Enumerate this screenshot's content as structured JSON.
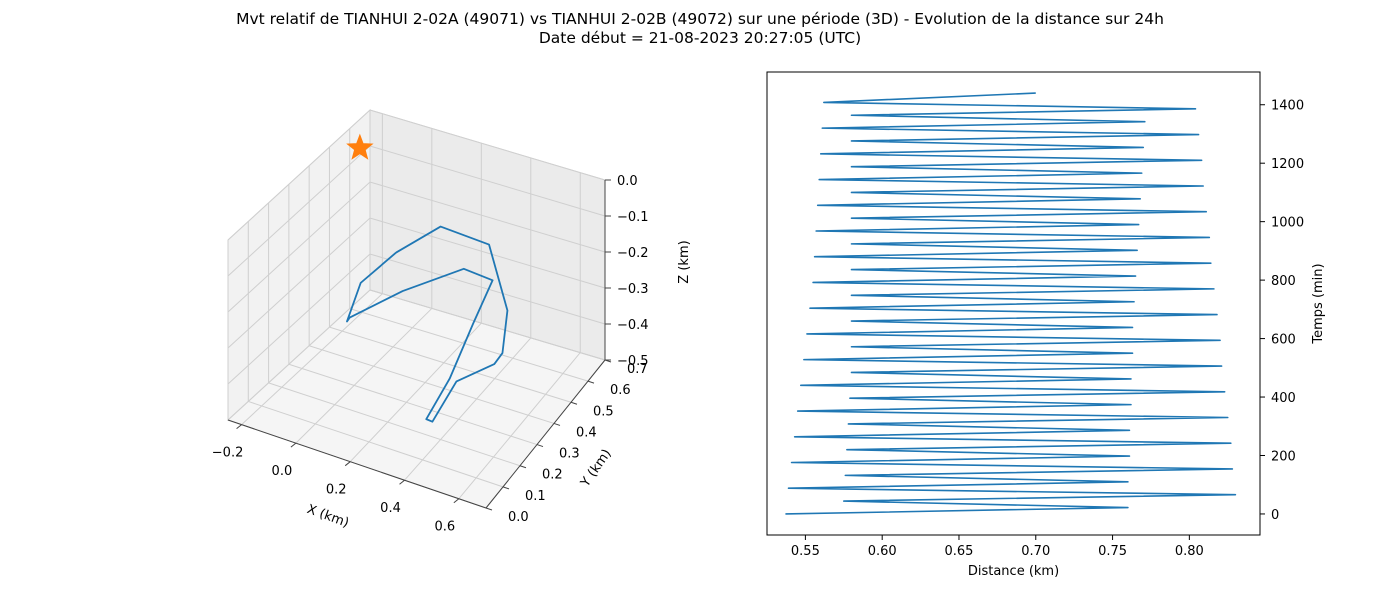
{
  "figure": {
    "title_line1": "Mvt relatif de TIANHUI 2-02A (49071) vs TIANHUI 2-02B (49072) sur une période (3D) - Evolution de la distance sur 24h",
    "title_line2": "Date début = 21-08-2023 20:27:05 (UTC)"
  },
  "chart_data": [
    {
      "type": "line3d",
      "xlabel": "X (km)",
      "ylabel": "Y (km)",
      "zlabel": "Z (km)",
      "xlim": [
        -0.25,
        0.7
      ],
      "ylim": [
        0.0,
        0.7
      ],
      "zlim": [
        -0.5,
        0.0
      ],
      "x_ticks": [
        -0.2,
        0.0,
        0.2,
        0.4,
        0.6
      ],
      "x_tick_labels": [
        "−0.2",
        "0.0",
        "0.2",
        "0.4",
        "0.6"
      ],
      "y_ticks": [
        0.0,
        0.1,
        0.2,
        0.3,
        0.4,
        0.5,
        0.6,
        0.7
      ],
      "y_tick_labels": [
        "0.0",
        "0.1",
        "0.2",
        "0.3",
        "0.4",
        "0.5",
        "0.6",
        "0.7"
      ],
      "z_ticks": [
        -0.5,
        -0.4,
        -0.3,
        -0.2,
        -0.1,
        0.0
      ],
      "z_tick_labels": [
        "−0.5",
        "−0.4",
        "−0.3",
        "−0.2",
        "−0.1",
        "0.0"
      ],
      "grid": true,
      "series": [
        {
          "color": "#1f77b4",
          "points": [
            [
              0.05,
              0.45,
              -0.2
            ],
            [
              0.15,
              0.55,
              -0.16
            ],
            [
              0.32,
              0.58,
              -0.19
            ],
            [
              0.45,
              0.5,
              -0.3
            ],
            [
              0.5,
              0.4,
              -0.35
            ],
            [
              0.55,
              0.28,
              -0.3
            ],
            [
              0.5,
              0.14,
              -0.28
            ],
            [
              0.45,
              0.08,
              -0.37
            ],
            [
              0.38,
              0.15,
              -0.42
            ],
            [
              0.38,
              0.28,
              -0.38
            ],
            [
              0.4,
              0.38,
              -0.28
            ],
            [
              0.42,
              0.46,
              -0.2
            ],
            [
              0.35,
              0.4,
              -0.15
            ],
            [
              0.2,
              0.28,
              -0.18
            ],
            [
              0.02,
              0.25,
              -0.28
            ],
            [
              -0.05,
              0.33,
              -0.35
            ],
            [
              -0.05,
              0.4,
              -0.28
            ],
            [
              0.05,
              0.45,
              -0.2
            ]
          ]
        }
      ],
      "marker": {
        "type": "star",
        "color": "#ff7f0e",
        "point": [
          -0.25,
          0.65,
          -0.08
        ]
      }
    },
    {
      "type": "line",
      "xlabel": "Distance (km)",
      "ylabel": "Temps (min)",
      "xlim": [
        0.525,
        0.846
      ],
      "ylim": [
        -72,
        1512
      ],
      "x_ticks": [
        0.55,
        0.6,
        0.65,
        0.7,
        0.75,
        0.8
      ],
      "x_tick_labels": [
        "0.55",
        "0.60",
        "0.65",
        "0.70",
        "0.75",
        "0.80"
      ],
      "y_ticks": [
        0,
        200,
        400,
        600,
        800,
        1000,
        1200,
        1400
      ],
      "y_tick_labels": [
        "0",
        "200",
        "400",
        "600",
        "800",
        "1000",
        "1200",
        "1400"
      ],
      "series": [
        {
          "color": "#1f77b4",
          "x": [
            0.537,
            0.76,
            0.575,
            0.83,
            0.539,
            0.76,
            0.576,
            0.828,
            0.541,
            0.761,
            0.577,
            0.827,
            0.543,
            0.761,
            0.578,
            0.825,
            0.545,
            0.762,
            0.579,
            0.823,
            0.547,
            0.762,
            0.58,
            0.821,
            0.549,
            0.763,
            0.58,
            0.82,
            0.551,
            0.763,
            0.58,
            0.818,
            0.553,
            0.764,
            0.58,
            0.816,
            0.555,
            0.765,
            0.58,
            0.814,
            0.556,
            0.766,
            0.58,
            0.813,
            0.557,
            0.767,
            0.58,
            0.811,
            0.558,
            0.768,
            0.58,
            0.809,
            0.559,
            0.769,
            0.58,
            0.808,
            0.56,
            0.77,
            0.58,
            0.806,
            0.561,
            0.771,
            0.58,
            0.804,
            0.562,
            0.7
          ],
          "y": [
            0,
            22,
            44,
            66,
            88,
            110,
            132,
            154,
            176,
            198,
            220,
            242,
            264,
            286,
            308,
            330,
            352,
            374,
            396,
            418,
            440,
            462,
            484,
            506,
            528,
            550,
            572,
            594,
            616,
            638,
            660,
            682,
            704,
            726,
            748,
            770,
            792,
            814,
            836,
            858,
            880,
            902,
            924,
            946,
            968,
            990,
            1012,
            1034,
            1056,
            1078,
            1100,
            1122,
            1144,
            1166,
            1188,
            1210,
            1232,
            1254,
            1276,
            1298,
            1320,
            1342,
            1364,
            1386,
            1408,
            1440
          ]
        }
      ]
    }
  ]
}
